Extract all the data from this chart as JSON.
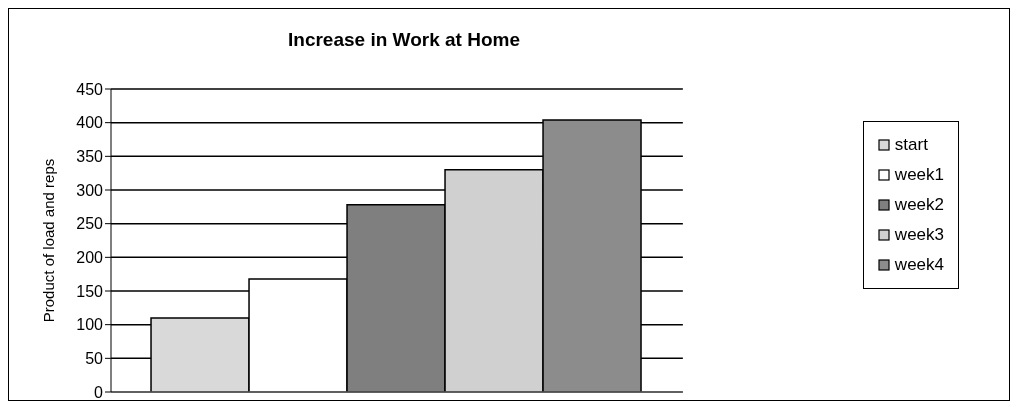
{
  "chart_data": {
    "type": "bar",
    "title": "Increase in Work at Home",
    "ylabel": "Product of load and reps",
    "categories": [
      null
    ],
    "series": [
      {
        "name": "start",
        "color": "#d9d9d9",
        "values": [
          110
        ]
      },
      {
        "name": "week1",
        "color": "#ffffff",
        "values": [
          168
        ]
      },
      {
        "name": "week2",
        "color": "#7f7f7f",
        "values": [
          278
        ]
      },
      {
        "name": "week3",
        "color": "#d0d0d0",
        "values": [
          330
        ]
      },
      {
        "name": "week4",
        "color": "#8c8c8c",
        "values": [
          404
        ]
      }
    ],
    "ylim": [
      0,
      450
    ],
    "yticks": [
      0,
      50,
      100,
      150,
      200,
      250,
      300,
      350,
      400,
      450
    ],
    "grid": "y",
    "legend": "right"
  }
}
